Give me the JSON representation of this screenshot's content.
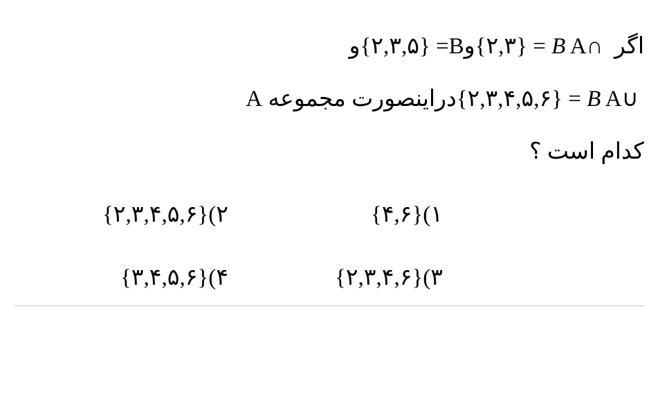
{
  "question": {
    "line1_part1": "اگر ",
    "line1_intersect": "{۲,۳}",
    "line1_eq": " = ",
    "line1_AnB": "A∩ ",
    "line1_B_italic": "B",
    "line1_and1": "و",
    "line1_Bset": "{۲,۳,۵}",
    "line1_Beq": " =B",
    "line1_and2": "و",
    "line2_union": "{۲,۳,۴,۵,۶}",
    "line2_eq": " = ",
    "line2_AuB": "A∪ ",
    "line2_B_italic": "B",
    "line2_text": "دراینصورت مجموعه A",
    "line3": "کدام است ؟",
    "options": {
      "opt1_num": "۱)",
      "opt1_val": "{۴,۶}",
      "opt2_num": "۲)",
      "opt2_val": "{۲,۳,۴,۵,۶}",
      "opt3_num": "۳)",
      "opt3_val": "{۲,۳,۴,۶}",
      "opt4_num": "۴)",
      "opt4_val": "{۳,۴,۵,۶}"
    }
  },
  "style": {
    "text_color": "#000000",
    "bg_color": "#ffffff",
    "font_size": 33,
    "underline_color": "#cccccc"
  }
}
